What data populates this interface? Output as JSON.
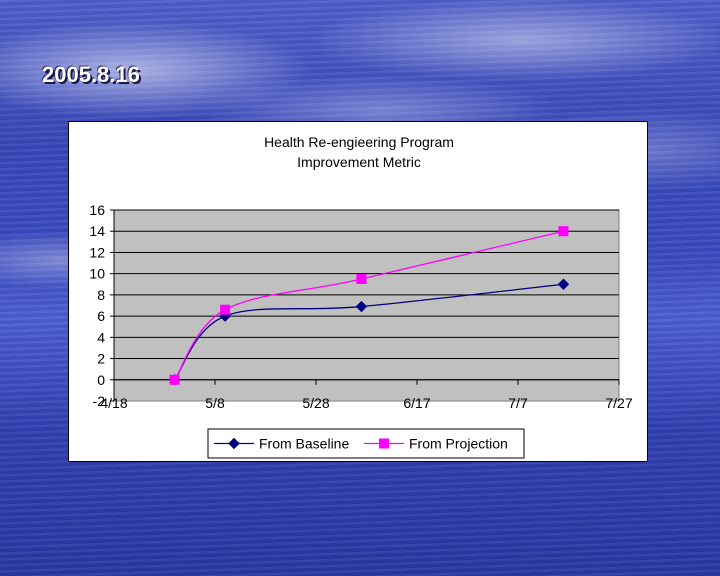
{
  "slide": {
    "date_label": "2005.8.16"
  },
  "chart_data": {
    "type": "line",
    "title_lines": [
      "Health Re-engieering Program",
      "Improvement Metric"
    ],
    "x_ticks": [
      "4/18",
      "5/8",
      "5/28",
      "6/17",
      "7/7",
      "7/27"
    ],
    "y_ticks": [
      "-2",
      "0",
      "2",
      "4",
      "6",
      "8",
      "10",
      "12",
      "14",
      "16"
    ],
    "ylim": [
      -2,
      16
    ],
    "grid": true,
    "legend_position": "bottom",
    "series": [
      {
        "name": "From Baseline",
        "color": "#000080",
        "marker": "diamond",
        "x": [
          "4/30",
          "5/10",
          "6/6",
          "7/16"
        ],
        "y": [
          0,
          6,
          6.9,
          9
        ]
      },
      {
        "name": "From Projection",
        "color": "#ff00ff",
        "marker": "square",
        "x": [
          "4/30",
          "5/10",
          "6/6",
          "7/16"
        ],
        "y": [
          0,
          6.6,
          9.5,
          14
        ]
      }
    ]
  }
}
